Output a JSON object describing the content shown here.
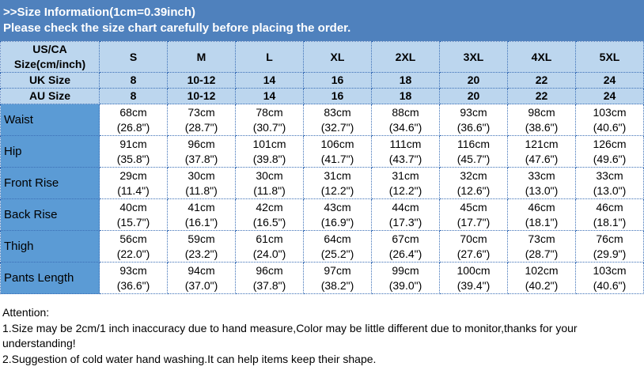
{
  "title": {
    "line1": ">>Size Information(1cm=0.39inch)",
    "line2": "Please check the size chart carefully before placing the order."
  },
  "header": {
    "label": "US/CA Size(cm/inch)",
    "sizes": [
      "S",
      "M",
      "L",
      "XL",
      "2XL",
      "3XL",
      "4XL",
      "5XL"
    ]
  },
  "uk": {
    "label": "UK Size",
    "values": [
      "8",
      "10-12",
      "14",
      "16",
      "18",
      "20",
      "22",
      "24"
    ]
  },
  "au": {
    "label": "AU Size",
    "values": [
      "8",
      "10-12",
      "14",
      "16",
      "18",
      "20",
      "22",
      "24"
    ]
  },
  "rows": [
    {
      "label": "Waist",
      "cm": [
        "68cm",
        "73cm",
        "78cm",
        "83cm",
        "88cm",
        "93cm",
        "98cm",
        "103cm"
      ],
      "in": [
        "(26.8\")",
        "(28.7\")",
        "(30.7\")",
        "(32.7\")",
        "(34.6\")",
        "(36.6\")",
        "(38.6\")",
        "(40.6\")"
      ]
    },
    {
      "label": "Hip",
      "cm": [
        "91cm",
        "96cm",
        "101cm",
        "106cm",
        "111cm",
        "116cm",
        "121cm",
        "126cm"
      ],
      "in": [
        "(35.8\")",
        "(37.8\")",
        "(39.8\")",
        "(41.7\")",
        "(43.7\")",
        "(45.7\")",
        "(47.6\")",
        "(49.6\")"
      ]
    },
    {
      "label": "Front Rise",
      "cm": [
        "29cm",
        "30cm",
        "30cm",
        "31cm",
        "31cm",
        "32cm",
        "33cm",
        "33cm"
      ],
      "in": [
        "(11.4\")",
        "(11.8\")",
        "(11.8\")",
        "(12.2\")",
        "(12.2\")",
        "(12.6\")",
        "(13.0\")",
        "(13.0\")"
      ]
    },
    {
      "label": "Back Rise",
      "cm": [
        "40cm",
        "41cm",
        "42cm",
        "43cm",
        "44cm",
        "45cm",
        "46cm",
        "46cm"
      ],
      "in": [
        "(15.7\")",
        "(16.1\")",
        "(16.5\")",
        "(16.9\")",
        "(17.3\")",
        "(17.7\")",
        "(18.1\")",
        "(18.1\")"
      ]
    },
    {
      "label": "Thigh",
      "cm": [
        "56cm",
        "59cm",
        "61cm",
        "64cm",
        "67cm",
        "70cm",
        "73cm",
        "76cm"
      ],
      "in": [
        "(22.0\")",
        "(23.2\")",
        "(24.0\")",
        "(25.2\")",
        "(26.4\")",
        "(27.6\")",
        "(28.7\")",
        "(29.9\")"
      ]
    },
    {
      "label": "Pants Length",
      "cm": [
        "93cm",
        "94cm",
        "96cm",
        "97cm",
        "99cm",
        "100cm",
        "102cm",
        "103cm"
      ],
      "in": [
        "(36.6\")",
        "(37.0\")",
        "(37.8\")",
        "(38.2\")",
        "(39.0\")",
        "(39.4\")",
        "(40.2\")",
        "(40.6\")"
      ]
    }
  ],
  "notes": [
    "Attention:",
    "1.Size may be 2cm/1 inch inaccuracy due to hand measure,Color may be little different due to monitor,thanks for your understanding!",
    "2.Suggestion of cold water hand washing.It can help items keep their shape."
  ]
}
